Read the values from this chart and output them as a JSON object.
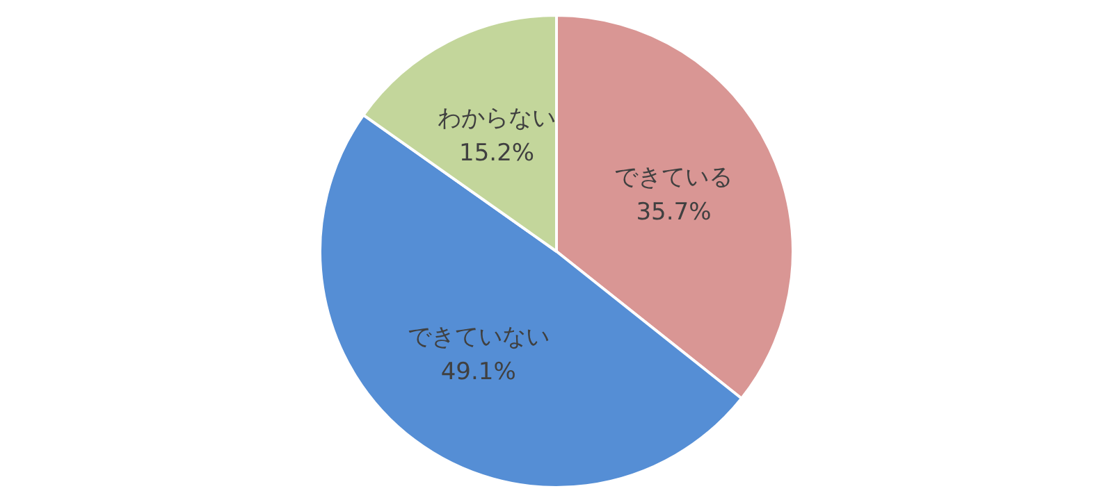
{
  "chart_data": {
    "type": "pie",
    "categories": [
      "できている",
      "できていない",
      "わからない"
    ],
    "values": [
      35.7,
      49.1,
      15.2
    ],
    "colors": [
      "#d99694",
      "#558ed5",
      "#c3d69b"
    ],
    "value_labels": [
      "35.7%",
      "49.1%",
      "15.2%"
    ],
    "legend": false
  }
}
